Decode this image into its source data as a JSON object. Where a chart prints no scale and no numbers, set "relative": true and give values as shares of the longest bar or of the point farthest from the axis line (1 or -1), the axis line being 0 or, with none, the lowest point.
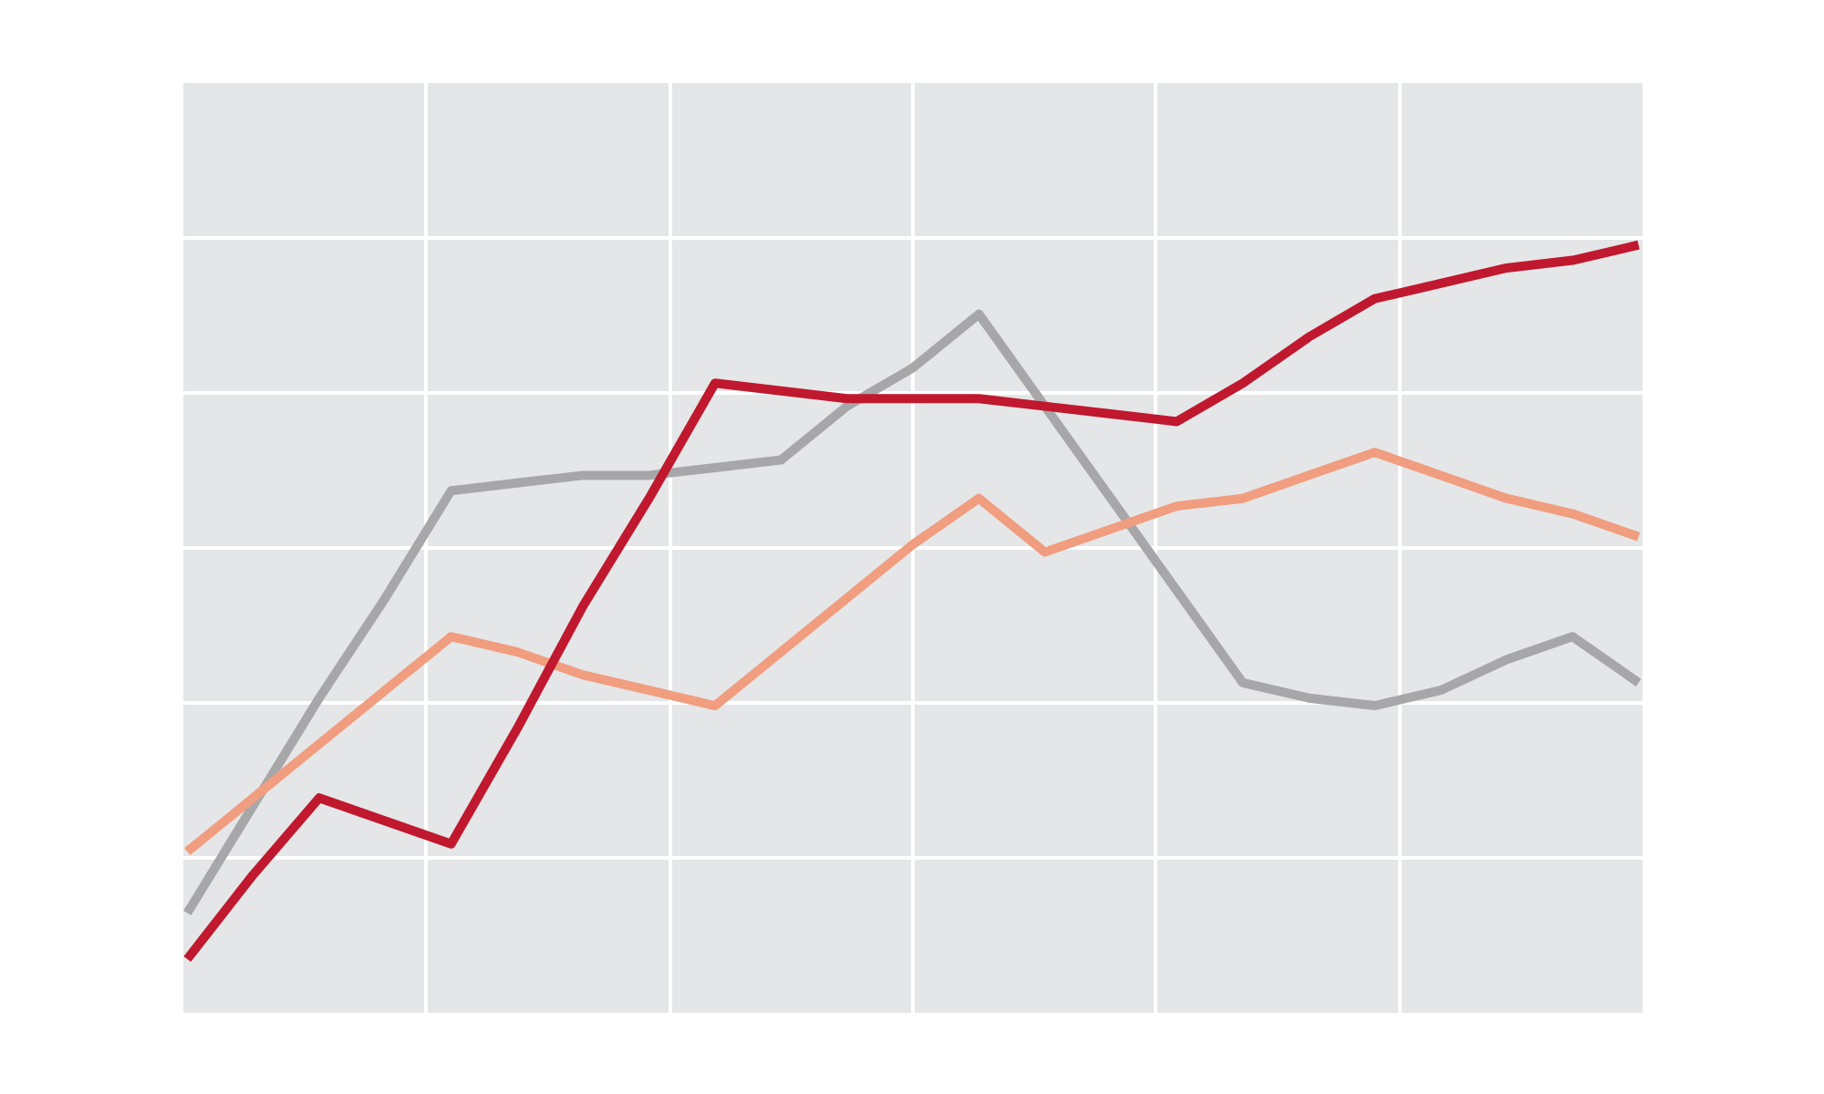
{
  "chart_data": {
    "type": "line",
    "relative": true,
    "grid": true,
    "tick_labels": false,
    "line_style": "solid",
    "categories": [
      null,
      null,
      null,
      null,
      null,
      null,
      null,
      null,
      null,
      null,
      null,
      null,
      null,
      null,
      null,
      null,
      null,
      null,
      null,
      null,
      null,
      null,
      null
    ],
    "series": [
      {
        "color": "#a7a7a9",
        "values": [
          0.13,
          0.27,
          0.41,
          0.54,
          0.68,
          0.69,
          0.7,
          0.7,
          0.71,
          0.72,
          0.79,
          0.84,
          0.91,
          0.79,
          0.67,
          0.55,
          0.43,
          0.41,
          0.4,
          0.42,
          0.46,
          0.49,
          0.43
        ]
      },
      {
        "color": "#f19d7f",
        "values": [
          0.21,
          0.28,
          0.35,
          0.42,
          0.49,
          0.47,
          0.44,
          0.42,
          0.4,
          0.47,
          0.54,
          0.61,
          0.67,
          0.6,
          0.63,
          0.66,
          0.67,
          0.7,
          0.73,
          0.7,
          0.67,
          0.65,
          0.62
        ]
      },
      {
        "color": "#c0182e",
        "values": [
          0.07,
          0.18,
          0.28,
          0.25,
          0.22,
          0.37,
          0.53,
          0.67,
          0.82,
          0.81,
          0.8,
          0.8,
          0.8,
          0.79,
          0.78,
          0.77,
          0.82,
          0.88,
          0.93,
          0.95,
          0.97,
          0.98,
          1
        ]
      }
    ]
  }
}
